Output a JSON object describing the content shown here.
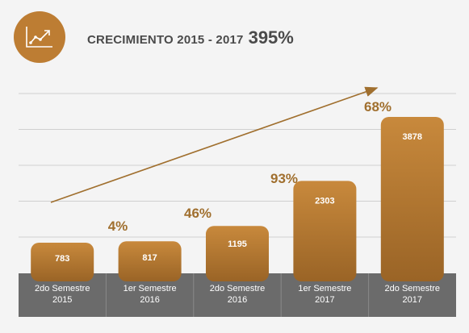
{
  "header": {
    "icon": "line-chart-growth-icon",
    "title": "CRECIMIENTO 2015 - 2017",
    "total_growth": "395%"
  },
  "colors": {
    "accent": "#bd7d33",
    "bar_top": "#c8893c",
    "bar_bottom": "#9a6426",
    "growth_text": "#a06f2e",
    "axis_band": "#6b6b6b",
    "gridline": "#cfcfcf"
  },
  "chart_data": {
    "type": "bar",
    "categories": [
      [
        "2do Semestre",
        "2015"
      ],
      [
        "1er Semestre",
        "2016"
      ],
      [
        "2do Semestre",
        "2016"
      ],
      [
        "1er Semestre",
        "2017"
      ],
      [
        "2do Semestre",
        "2017"
      ]
    ],
    "values": [
      783,
      817,
      1195,
      2303,
      3878
    ],
    "value_labels": [
      "783",
      "817",
      "1195",
      "2303",
      "3878"
    ],
    "growth_labels": [
      "4%",
      "46%",
      "93%",
      "68%"
    ],
    "trend_arrow": true,
    "legend": "none",
    "grid": true,
    "ylim": [
      0,
      4400
    ]
  }
}
